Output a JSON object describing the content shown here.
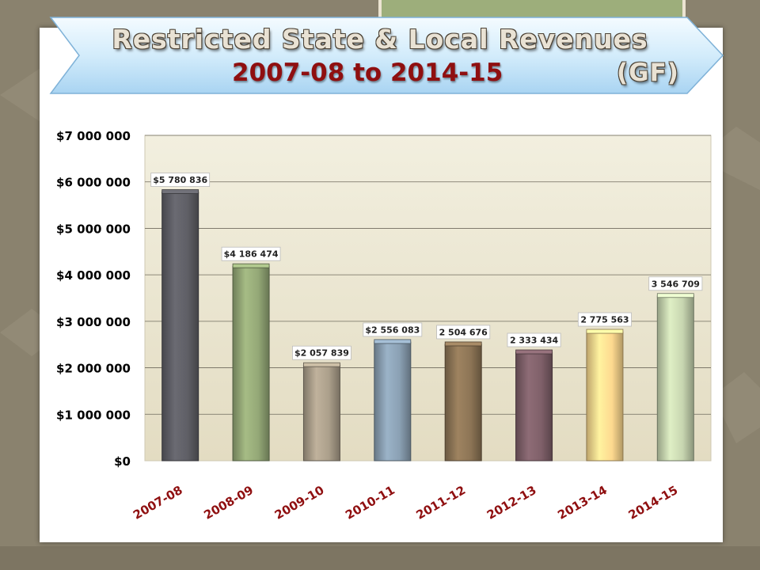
{
  "slide": {
    "title_line1": "Restricted State & Local Revenues",
    "title_line2": "2007-08 to 2014-15",
    "title_suffix": "(GF)"
  },
  "chart_data": {
    "type": "bar",
    "categories": [
      "2007-08",
      "2008-09",
      "2009-10",
      "2010-11",
      "2011-12",
      "2012-13",
      "2013-14",
      "2014-15"
    ],
    "values": [
      5780836,
      4186474,
      2057839,
      2556083,
      2504676,
      2333434,
      2775563,
      3546709
    ],
    "data_labels": [
      "$5 780 836",
      "$4 186 474",
      "$2 057 839",
      "$2 556 083",
      "2 504 676",
      "2 333 434",
      "2 775 563",
      "3 546 709"
    ],
    "bar_colors": [
      "#5f5f66",
      "#94a877",
      "#ab9f8b",
      "#8aa0b3",
      "#8d7556",
      "#7f6069",
      "#fdd98f",
      "#c7d5b0"
    ],
    "y_ticks": [
      "$0",
      "$1 000 000",
      "$2 000 000",
      "$3 000 000",
      "$4 000 000",
      "$5 000 000",
      "$6 000 000",
      "$7 000 000"
    ],
    "ylim": [
      0,
      7000000
    ],
    "grid": true,
    "plot_background": "#ece8d5"
  }
}
